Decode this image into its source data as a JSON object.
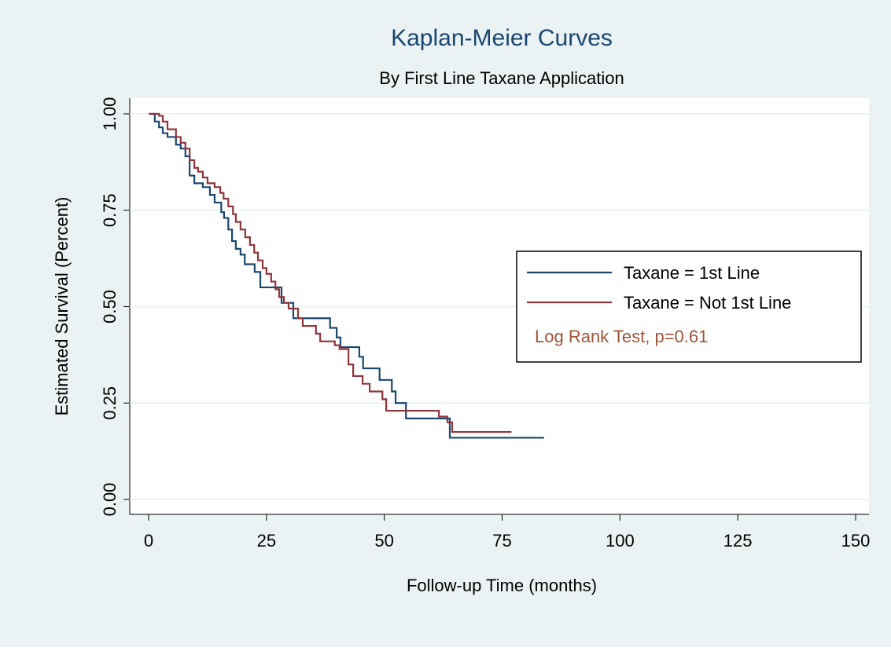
{
  "chart_data": {
    "type": "line",
    "drawstyle": "steps-post",
    "title": "Kaplan-Meier Curves",
    "subtitle": "By First Line Taxane Application",
    "xlabel": "Follow-up Time (months)",
    "ylabel": "Estimated Survival (Percent)",
    "xlim": [
      0,
      150
    ],
    "xticks": [
      0,
      25,
      50,
      75,
      100,
      125,
      150
    ],
    "ylim": [
      0,
      1
    ],
    "yticks": [
      {
        "value": 0,
        "label": "0.00"
      },
      {
        "value": 0.25,
        "label": "0.25"
      },
      {
        "value": 0.5,
        "label": "0.50"
      },
      {
        "value": 0.75,
        "label": "0.75"
      },
      {
        "value": 1,
        "label": "1.00"
      }
    ],
    "grid": true,
    "legend": "right",
    "annotation": "Log Rank Test, p=0.61",
    "annotation_color": "#a0553a",
    "series": [
      {
        "name": "Taxane = 1st Line",
        "color": "#1a476f",
        "x": [
          0,
          1.3,
          2.2,
          3,
          4,
          5.8,
          6.8,
          7.8,
          8.7,
          9.7,
          11.5,
          13,
          14,
          15.4,
          16,
          16.9,
          17.7,
          18.5,
          19.5,
          20.4,
          22.5,
          23.7,
          28.2,
          30.7,
          38.5,
          39.9,
          40.7,
          44.7,
          45.5,
          49,
          51.6,
          52.4,
          54.6,
          63.9,
          83.9
        ],
        "values": [
          1,
          0.98,
          0.965,
          0.95,
          0.94,
          0.92,
          0.91,
          0.89,
          0.84,
          0.82,
          0.81,
          0.79,
          0.77,
          0.745,
          0.73,
          0.7,
          0.67,
          0.65,
          0.635,
          0.61,
          0.59,
          0.55,
          0.51,
          0.47,
          0.445,
          0.42,
          0.395,
          0.37,
          0.34,
          0.31,
          0.28,
          0.25,
          0.21,
          0.16,
          0.16
        ]
      },
      {
        "name": "Taxane = Not 1st Line",
        "color": "#90353b",
        "x": [
          0,
          2.2,
          3,
          4,
          5.8,
          6.8,
          7.8,
          8.7,
          9.7,
          10.5,
          11.5,
          12.5,
          14,
          15.2,
          15.9,
          16.9,
          17.9,
          18.5,
          19.5,
          20.5,
          21.5,
          22.4,
          23.2,
          24.2,
          25,
          26,
          26.9,
          27.7,
          28.7,
          29.7,
          31.7,
          32.7,
          35.5,
          36.4,
          39.5,
          40.5,
          42.4,
          43.4,
          45.4,
          46.9,
          49.6,
          50.4,
          61.6,
          63.4,
          64.4,
          77
        ],
        "values": [
          1,
          0.995,
          0.98,
          0.96,
          0.94,
          0.925,
          0.91,
          0.88,
          0.86,
          0.85,
          0.835,
          0.82,
          0.81,
          0.795,
          0.78,
          0.76,
          0.74,
          0.72,
          0.7,
          0.68,
          0.66,
          0.64,
          0.62,
          0.6,
          0.585,
          0.565,
          0.545,
          0.525,
          0.51,
          0.495,
          0.47,
          0.45,
          0.43,
          0.41,
          0.4,
          0.39,
          0.35,
          0.32,
          0.3,
          0.28,
          0.26,
          0.23,
          0.215,
          0.2,
          0.175,
          0.175
        ]
      }
    ]
  }
}
